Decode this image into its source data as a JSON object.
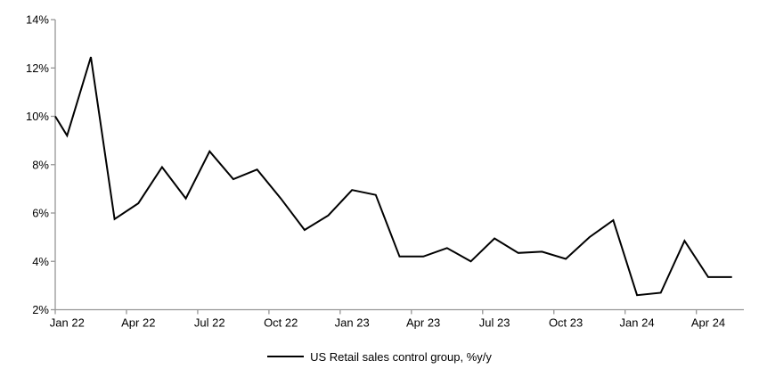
{
  "chart_data": {
    "type": "line",
    "title": "",
    "legend_label": "US Retail sales control group, %y/y",
    "legend_position": "bottom-center",
    "grid": false,
    "line_color": "#000000",
    "axis_color": "#969696",
    "text_color": "#000000",
    "ylim": [
      2,
      14
    ],
    "y_tick_labels": [
      "14%",
      "12%",
      "10%",
      "8%",
      "6%",
      "4%",
      "2%"
    ],
    "y_tick_values": [
      14,
      12,
      10,
      8,
      6,
      4,
      2
    ],
    "x_tick_labels": [
      "Jan 22",
      "Apr 22",
      "Jul 22",
      "Oct 22",
      "Jan 23",
      "Apr 23",
      "Jul 23",
      "Oct 23",
      "Jan 24",
      "Apr 24"
    ],
    "x_tick_interval_months": 3,
    "axis_edge_start_value": 10.0,
    "categories": [
      "Jan 22",
      "Feb 22",
      "Mar 22",
      "Apr 22",
      "May 22",
      "Jun 22",
      "Jul 22",
      "Aug 22",
      "Sep 22",
      "Oct 22",
      "Nov 22",
      "Dec 22",
      "Jan 23",
      "Feb 23",
      "Mar 23",
      "Apr 23",
      "May 23",
      "Jun 23",
      "Jul 23",
      "Aug 23",
      "Sep 23",
      "Oct 23",
      "Nov 23",
      "Dec 23",
      "Jan 24",
      "Feb 24",
      "Mar 24",
      "Apr 24",
      "May 24"
    ],
    "series": [
      {
        "name": "US Retail sales control group, %y/y",
        "values": [
          9.2,
          12.45,
          5.75,
          6.4,
          7.9,
          6.6,
          8.55,
          7.4,
          7.8,
          6.6,
          5.3,
          5.9,
          6.95,
          6.75,
          4.2,
          4.2,
          4.55,
          4.0,
          4.95,
          4.35,
          4.4,
          4.1,
          5.0,
          5.7,
          2.6,
          2.7,
          4.85,
          3.35,
          3.35
        ]
      }
    ]
  },
  "legend": {
    "label": "US Retail sales control group, %y/y"
  }
}
